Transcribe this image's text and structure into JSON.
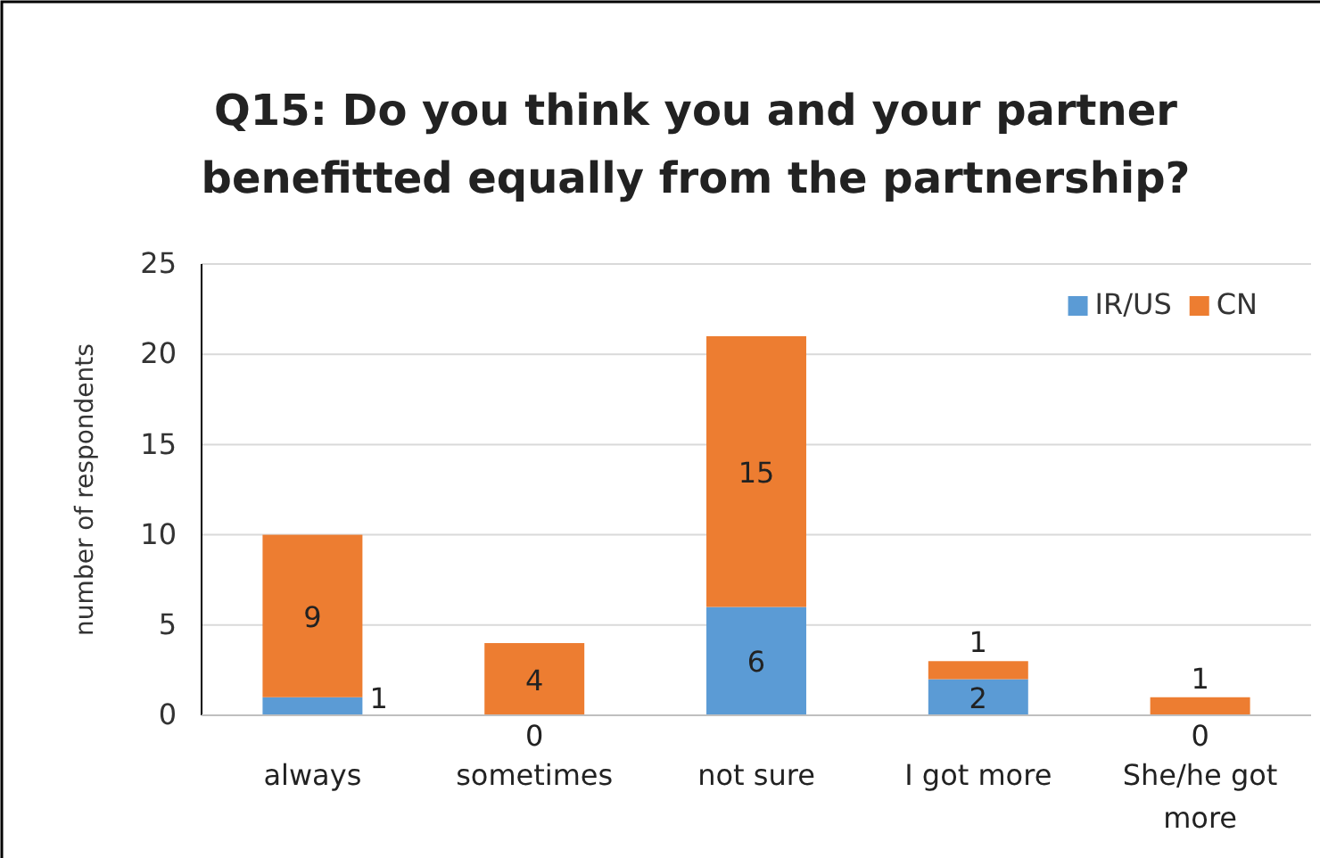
{
  "chart_data": {
    "type": "bar",
    "title": "Q15: Do you think you and your partner benefitted equally from the partnership?",
    "ylabel": "number of respondents",
    "categories": [
      "always",
      "sometimes",
      "not sure",
      "I got more",
      "She/he got more"
    ],
    "stacked": true,
    "series": [
      {
        "name": "IR/US",
        "color": "#5b9bd5",
        "values": [
          1,
          0,
          6,
          2,
          0
        ]
      },
      {
        "name": "CN",
        "color": "#ed7d31",
        "values": [
          9,
          4,
          15,
          1,
          1
        ]
      }
    ],
    "ylim": [
      0,
      25
    ],
    "yticks": [
      0,
      5,
      10,
      15,
      20,
      25
    ],
    "grid": "y",
    "legend": "top right",
    "data_labels": true
  }
}
